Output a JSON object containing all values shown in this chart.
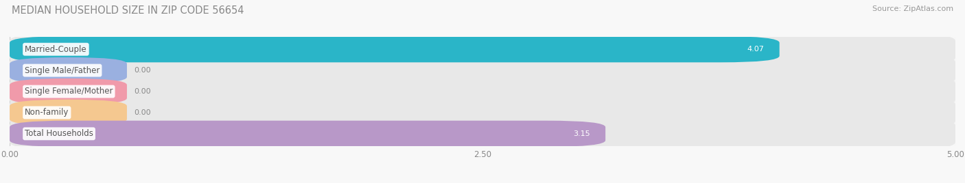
{
  "title": "MEDIAN HOUSEHOLD SIZE IN ZIP CODE 56654",
  "source": "Source: ZipAtlas.com",
  "categories": [
    "Married-Couple",
    "Single Male/Father",
    "Single Female/Mother",
    "Non-family",
    "Total Households"
  ],
  "values": [
    4.07,
    0.0,
    0.0,
    0.0,
    3.15
  ],
  "bar_colors": [
    "#2ab5c8",
    "#9ab0e0",
    "#f09aaa",
    "#f5c890",
    "#b898c8"
  ],
  "bar_bg_color": "#e8e8e8",
  "xlim": [
    0,
    5.0
  ],
  "xticks": [
    0.0,
    2.5,
    5.0
  ],
  "xtick_labels": [
    "0.00",
    "2.50",
    "5.00"
  ],
  "bar_height": 0.62,
  "figsize": [
    14.06,
    2.68
  ],
  "dpi": 100,
  "title_fontsize": 10.5,
  "label_fontsize": 8.5,
  "value_fontsize": 8.0,
  "source_fontsize": 8,
  "grid_color": "#cccccc",
  "background_color": "#f8f8f8",
  "title_color": "#888888",
  "source_color": "#999999",
  "label_color": "#555555",
  "value_color_inside": "#ffffff",
  "value_color_outside": "#888888"
}
